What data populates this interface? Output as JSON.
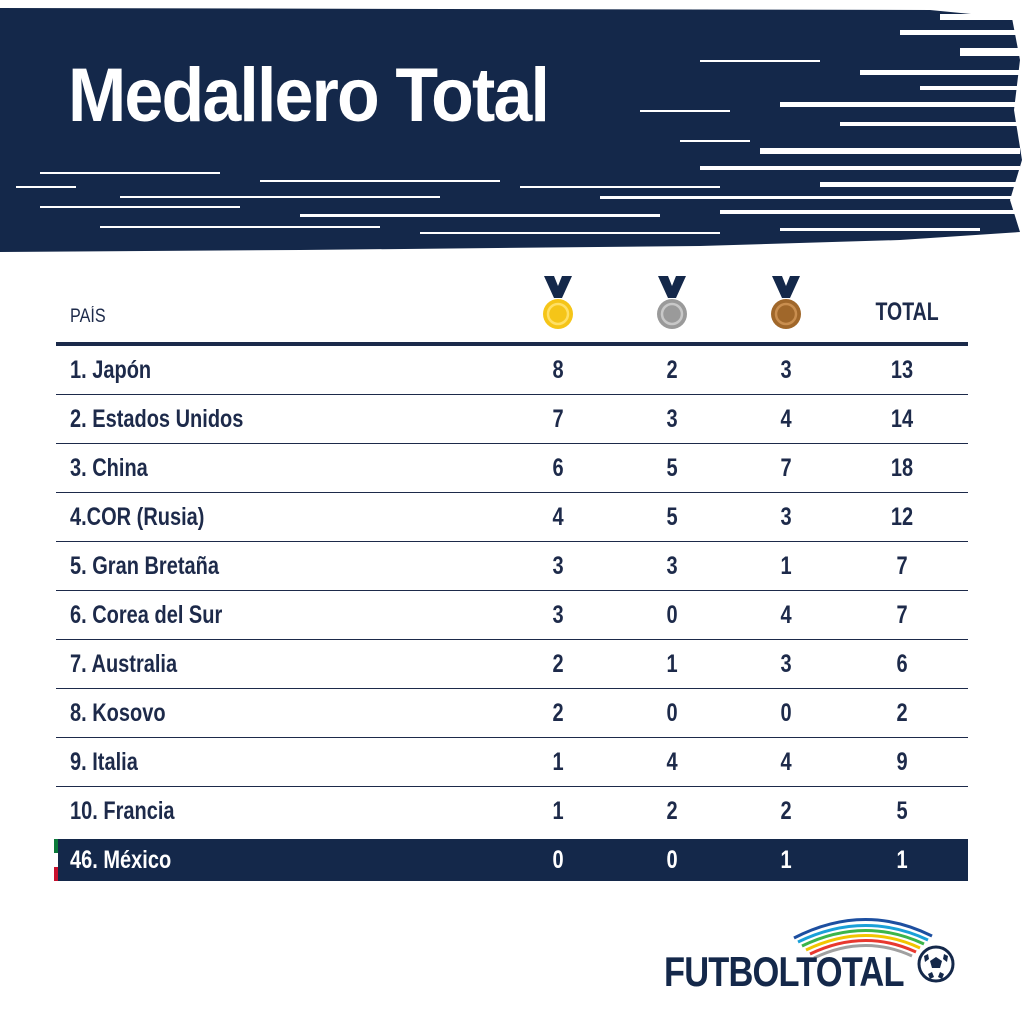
{
  "title": "Medallero Total",
  "columns": {
    "country": "PAÍS",
    "gold_icon": "gold-medal-icon",
    "silver_icon": "silver-medal-icon",
    "bronze_icon": "bronze-medal-icon",
    "total": "TOTAL"
  },
  "rows": [
    {
      "country": "1. Japón",
      "gold": "8",
      "silver": "2",
      "bronze": "3",
      "total": "13"
    },
    {
      "country": "2. Estados Unidos",
      "gold": "7",
      "silver": "3",
      "bronze": "4",
      "total": "14"
    },
    {
      "country": "3. China",
      "gold": "6",
      "silver": "5",
      "bronze": "7",
      "total": "18"
    },
    {
      "country": "4.COR (Rusia)",
      "gold": "4",
      "silver": "5",
      "bronze": "3",
      "total": "12"
    },
    {
      "country": "5. Gran Bretaña",
      "gold": "3",
      "silver": "3",
      "bronze": "1",
      "total": "7"
    },
    {
      "country": "6. Corea del Sur",
      "gold": "3",
      "silver": "0",
      "bronze": "4",
      "total": "7"
    },
    {
      "country": "7. Australia",
      "gold": "2",
      "silver": "1",
      "bronze": "3",
      "total": "6"
    },
    {
      "country": "8. Kosovo",
      "gold": "2",
      "silver": "0",
      "bronze": "0",
      "total": "2"
    },
    {
      "country": "9. Italia",
      "gold": "1",
      "silver": "4",
      "bronze": "4",
      "total": "9"
    },
    {
      "country": "10. Francia",
      "gold": "1",
      "silver": "2",
      "bronze": "2",
      "total": "5"
    }
  ],
  "highlight": {
    "country": "46. México",
    "gold": "0",
    "silver": "0",
    "bronze": "1",
    "total": "1"
  },
  "colors": {
    "navy": "#14284a",
    "gold": "#f5c518",
    "silver": "#9a9a9a",
    "bronze": "#a0672a",
    "flag_green": "#0b7a3a",
    "flag_white": "#ffffff",
    "flag_red": "#c8102e"
  },
  "logo": {
    "text": "FUTBOLTOTAL",
    "icon": "soccer-ball-icon"
  }
}
